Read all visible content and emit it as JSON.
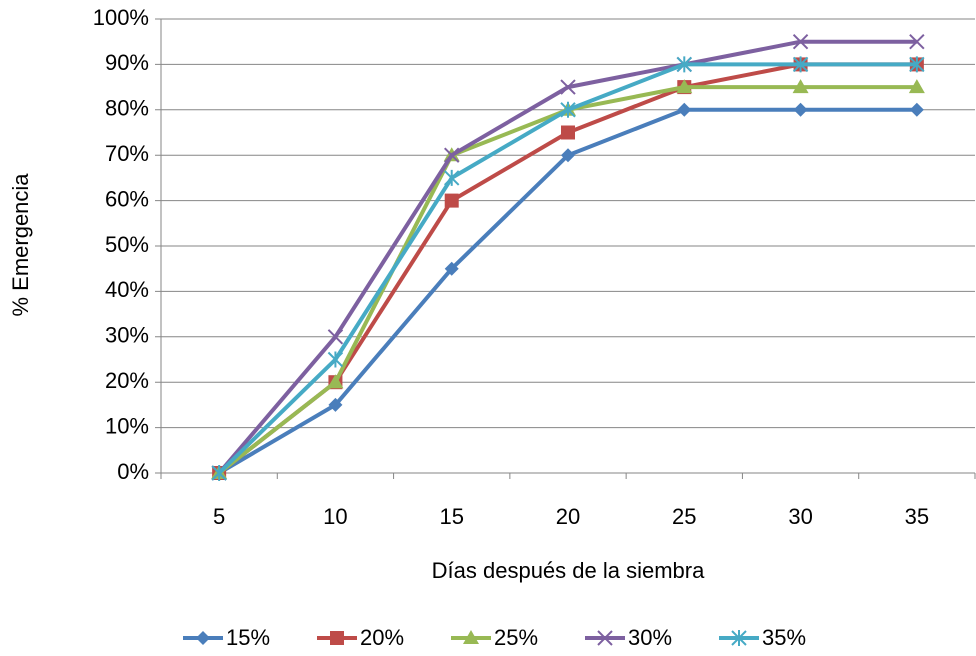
{
  "chart_data": {
    "type": "line",
    "x_label": "Días después de la siembra",
    "y_label": "% Emergencia",
    "categories": [
      "5",
      "10",
      "15",
      "20",
      "25",
      "30",
      "35"
    ],
    "series": [
      {
        "name": "15%",
        "color": "#4a7ebb",
        "marker": "diamond",
        "values": [
          0,
          15,
          45,
          70,
          80,
          80,
          80
        ]
      },
      {
        "name": "20%",
        "color": "#be4b48",
        "marker": "square",
        "values": [
          0,
          20,
          60,
          75,
          85,
          90,
          90
        ]
      },
      {
        "name": "25%",
        "color": "#98b954",
        "marker": "triangle",
        "values": [
          0,
          20,
          70,
          80,
          85,
          85,
          85
        ]
      },
      {
        "name": "30%",
        "color": "#7d60a0",
        "marker": "x",
        "values": [
          0,
          30,
          70,
          85,
          90,
          95,
          95
        ]
      },
      {
        "name": "35%",
        "color": "#46aac5",
        "marker": "star",
        "values": [
          0,
          25,
          65,
          80,
          90,
          90,
          90
        ]
      }
    ],
    "ylim": [
      0,
      100
    ],
    "yticks": [
      {
        "value": 0,
        "label": "0%"
      },
      {
        "value": 10,
        "label": "10%"
      },
      {
        "value": 20,
        "label": "20%"
      },
      {
        "value": 30,
        "label": "30%"
      },
      {
        "value": 40,
        "label": "40%"
      },
      {
        "value": 50,
        "label": "50%"
      },
      {
        "value": 60,
        "label": "60%"
      },
      {
        "value": 70,
        "label": "70%"
      },
      {
        "value": 80,
        "label": "80%"
      },
      {
        "value": 90,
        "label": "90%"
      },
      {
        "value": 100,
        "label": "100%"
      }
    ],
    "grid": true,
    "legend": "bottom"
  }
}
